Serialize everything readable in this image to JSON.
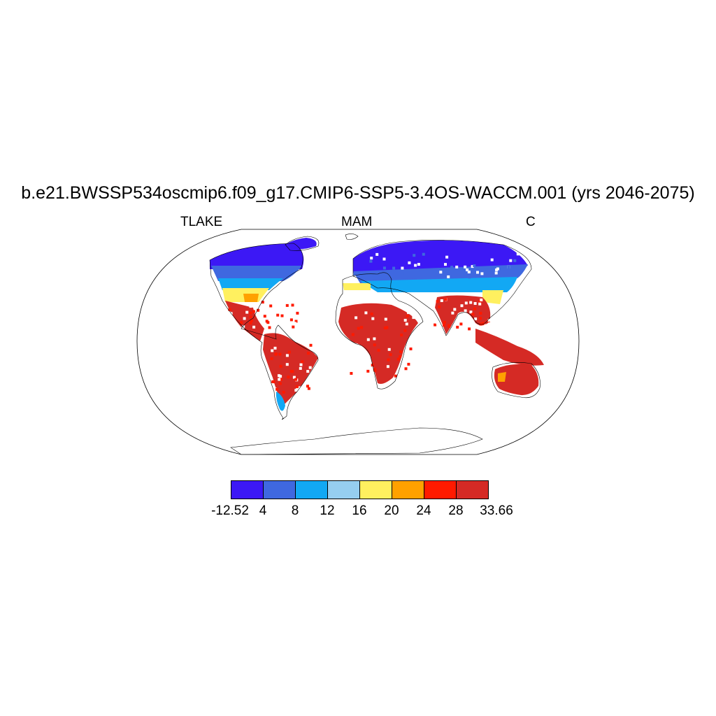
{
  "title": "b.e21.BWSSP534oscmip6.f09_g17.CMIP6-SSP5-3.4OS-WACCM.001 (yrs 2046-2075)",
  "left_label": "TLAKE",
  "center_label": "MAM",
  "right_label": "C",
  "colorbar": {
    "colors": [
      "#3c18f5",
      "#3f68e0",
      "#12a8f4",
      "#96cef0",
      "#fff05f",
      "#ffa100",
      "#ff1a00",
      "#d52a25"
    ],
    "labels": [
      "-12.52",
      "4",
      "8",
      "12",
      "16",
      "20",
      "24",
      "28",
      "33.66"
    ]
  }
}
